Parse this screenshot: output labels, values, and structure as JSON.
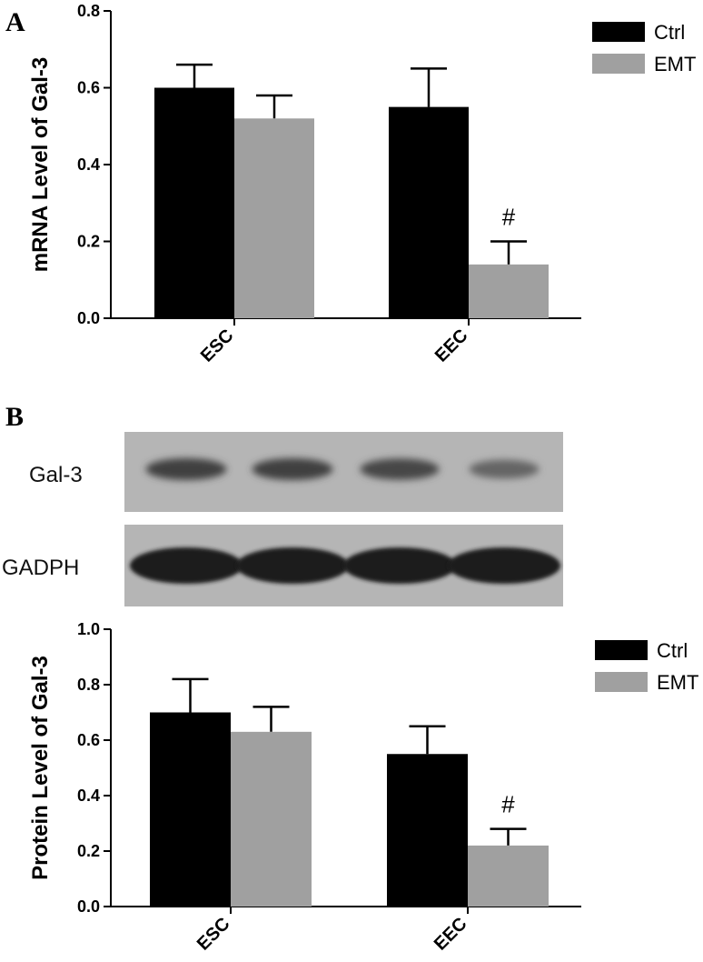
{
  "panels": {
    "a": {
      "letter": "A"
    },
    "b": {
      "letter": "B"
    }
  },
  "chart_data": [
    {
      "type": "bar",
      "ylabel": "mRNA Level of Gal-3",
      "ylim": [
        0,
        0.8
      ],
      "yticks": [
        "0.0",
        "0.2",
        "0.4",
        "0.6",
        "0.8"
      ],
      "categories": [
        "ESC",
        "EEC"
      ],
      "series": [
        {
          "name": "Ctrl",
          "color": "#000000",
          "values": [
            0.6,
            0.55
          ],
          "errors": [
            0.06,
            0.1
          ]
        },
        {
          "name": "EMT",
          "color": "#a0a0a0",
          "values": [
            0.52,
            0.14
          ],
          "errors": [
            0.06,
            0.06
          ]
        }
      ],
      "annotations": [
        {
          "category": "EEC",
          "series": "EMT",
          "text": "#"
        }
      ],
      "legend": "top-right"
    },
    {
      "type": "bar",
      "ylabel": "Protein Level of Gal-3",
      "ylim": [
        0,
        1.0
      ],
      "yticks": [
        "0.0",
        "0.2",
        "0.4",
        "0.6",
        "0.8",
        "1.0"
      ],
      "categories": [
        "ESC",
        "EEC"
      ],
      "series": [
        {
          "name": "Ctrl",
          "color": "#000000",
          "values": [
            0.7,
            0.55
          ],
          "errors": [
            0.12,
            0.1
          ]
        },
        {
          "name": "EMT",
          "color": "#a0a0a0",
          "values": [
            0.63,
            0.22
          ],
          "errors": [
            0.09,
            0.06
          ]
        }
      ],
      "annotations": [
        {
          "category": "EEC",
          "series": "EMT",
          "text": "#"
        }
      ],
      "legend": "top-right"
    }
  ],
  "blot": {
    "rows": [
      {
        "label": "Gal-3",
        "band_intensity": [
          0.75,
          0.75,
          0.72,
          0.55
        ]
      },
      {
        "label": "GADPH",
        "band_intensity": [
          0.95,
          0.95,
          0.95,
          0.95
        ]
      }
    ]
  }
}
